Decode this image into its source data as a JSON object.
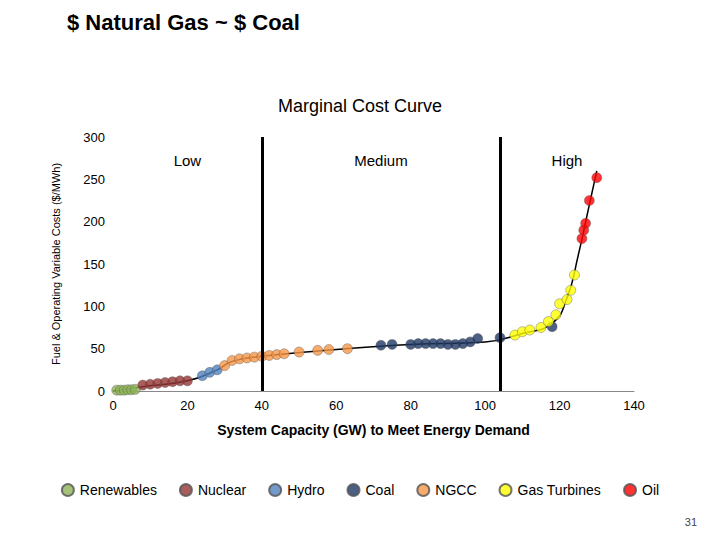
{
  "heading": "$ Natural Gas ~ $ Coal",
  "page_number": "31",
  "chart_data": {
    "type": "scatter",
    "title": "Marginal Cost Curve",
    "x_label": "System Capacity (GW) to Meet Energy Demand",
    "y_label": "Fuel & Operating Variable Costs ($/MWh)",
    "xlim": [
      0,
      140
    ],
    "xticks": [
      0,
      20,
      40,
      60,
      80,
      100,
      120,
      140
    ],
    "ylim": [
      0,
      300
    ],
    "yticks": [
      0,
      50,
      100,
      150,
      200,
      250,
      300
    ],
    "grid": false,
    "legend": "bottom",
    "marker": "circle",
    "series": [
      {
        "name": "Renewables",
        "color": "#8db356",
        "x": [
          1,
          2,
          3,
          4,
          5,
          6
        ],
        "values": [
          1,
          1,
          1,
          1.5,
          1.5,
          2
        ]
      },
      {
        "name": "Nuclear",
        "color": "#943634",
        "x": [
          8,
          10,
          12,
          14,
          16,
          18,
          20
        ],
        "values": [
          7,
          8,
          9,
          10,
          11,
          12,
          12
        ]
      },
      {
        "name": "Hydro",
        "color": "#4f81bd",
        "x": [
          24,
          26,
          28
        ],
        "values": [
          18,
          22,
          25
        ]
      },
      {
        "name": "Coal",
        "color": "#1f3864",
        "x": [
          72,
          75,
          80,
          82,
          84,
          86,
          88,
          90,
          92,
          94,
          96,
          98,
          104,
          118
        ],
        "values": [
          54,
          55,
          55,
          56,
          56,
          56,
          56,
          55,
          55,
          56,
          58,
          62,
          63,
          76
        ]
      },
      {
        "name": "NGCC",
        "color": "#f79646",
        "x": [
          30,
          32,
          34,
          36,
          38,
          40,
          42,
          44,
          46,
          50,
          55,
          58,
          63
        ],
        "values": [
          30,
          36,
          38,
          39,
          40,
          41,
          42,
          43,
          44,
          46,
          48,
          49,
          50
        ]
      },
      {
        "name": "Gas Turbines",
        "color": "#ffff00",
        "x": [
          108,
          110,
          112,
          115,
          117,
          119,
          120,
          122,
          123,
          124
        ],
        "values": [
          66,
          70,
          72,
          75,
          82,
          90,
          103,
          108,
          119,
          137
        ]
      },
      {
        "name": "Oil",
        "color": "#ff0000",
        "x": [
          126,
          126.5,
          127,
          128,
          130
        ],
        "values": [
          180,
          190,
          198,
          225,
          252
        ]
      }
    ],
    "curve": {
      "type": "line",
      "color": "#000000",
      "x": [
        0,
        8,
        20,
        28,
        32,
        40,
        60,
        80,
        100,
        110,
        118,
        122,
        125,
        128,
        130
      ],
      "values": [
        0,
        5,
        12,
        25,
        35,
        41,
        49,
        55,
        58,
        68,
        80,
        110,
        160,
        220,
        260
      ]
    },
    "regions": [
      {
        "label": "Low",
        "start": 0,
        "end": 40
      },
      {
        "label": "Medium",
        "start": 40,
        "end": 104
      },
      {
        "label": "High",
        "start": 104,
        "end": 140
      }
    ]
  }
}
